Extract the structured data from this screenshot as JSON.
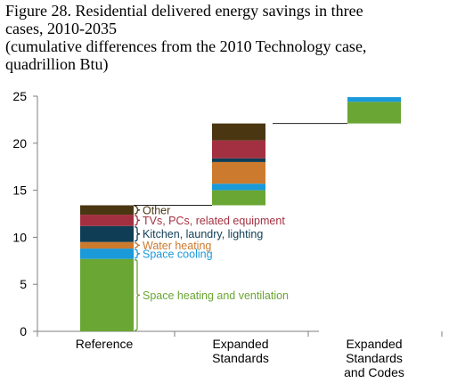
{
  "title_lines": [
    "Figure 28. Residential delivered energy savings in three",
    "cases, 2010-2035",
    "(cumulative differences from the 2010 Technology case,",
    "quadrillion Btu)"
  ],
  "chart_data": {
    "type": "bar",
    "subtype": "waterfall-stacked",
    "ylim": [
      0,
      25
    ],
    "yticks": [
      0,
      5,
      10,
      15,
      20,
      25
    ],
    "grid": false,
    "categories": [
      {
        "lines": [
          "Reference"
        ]
      },
      {
        "lines": [
          "Expanded",
          "Standards"
        ]
      },
      {
        "lines": [
          "Expanded",
          "Standards",
          "and Codes"
        ]
      }
    ],
    "series": [
      {
        "key": "space_heating",
        "label": "Space heating and ventilation",
        "color": "#6aa634"
      },
      {
        "key": "space_cooling",
        "label": "Space cooling",
        "color": "#1b9ad9"
      },
      {
        "key": "water_heating",
        "label": "Water heating",
        "color": "#cc7a2e"
      },
      {
        "key": "kitchen",
        "label": "Kitchen, laundry, lighting",
        "color": "#0f3d55"
      },
      {
        "key": "tvs",
        "label": "TVs, PCs, related equipment",
        "color": "#a33040"
      },
      {
        "key": "other",
        "label": "Other",
        "color": "#4a3712"
      }
    ],
    "bars": [
      {
        "category": 0,
        "base": 0,
        "segments": [
          {
            "series": "space_heating",
            "value": 7.7
          },
          {
            "series": "space_cooling",
            "value": 1.1
          },
          {
            "series": "water_heating",
            "value": 0.7
          },
          {
            "series": "kitchen",
            "value": 1.7
          },
          {
            "series": "tvs",
            "value": 1.2
          },
          {
            "series": "other",
            "value": 1.0
          }
        ]
      },
      {
        "category": 1,
        "base": 13.4,
        "segments": [
          {
            "series": "space_heating",
            "value": 1.6
          },
          {
            "series": "space_cooling",
            "value": 0.7
          },
          {
            "series": "water_heating",
            "value": 2.3
          },
          {
            "series": "kitchen",
            "value": 0.4
          },
          {
            "series": "tvs",
            "value": 1.9
          },
          {
            "series": "other",
            "value": 1.8
          }
        ]
      },
      {
        "category": 2,
        "base": 22.1,
        "segments": [
          {
            "series": "space_heating",
            "value": 2.3
          },
          {
            "series": "space_cooling",
            "value": 0.5
          }
        ]
      }
    ]
  }
}
